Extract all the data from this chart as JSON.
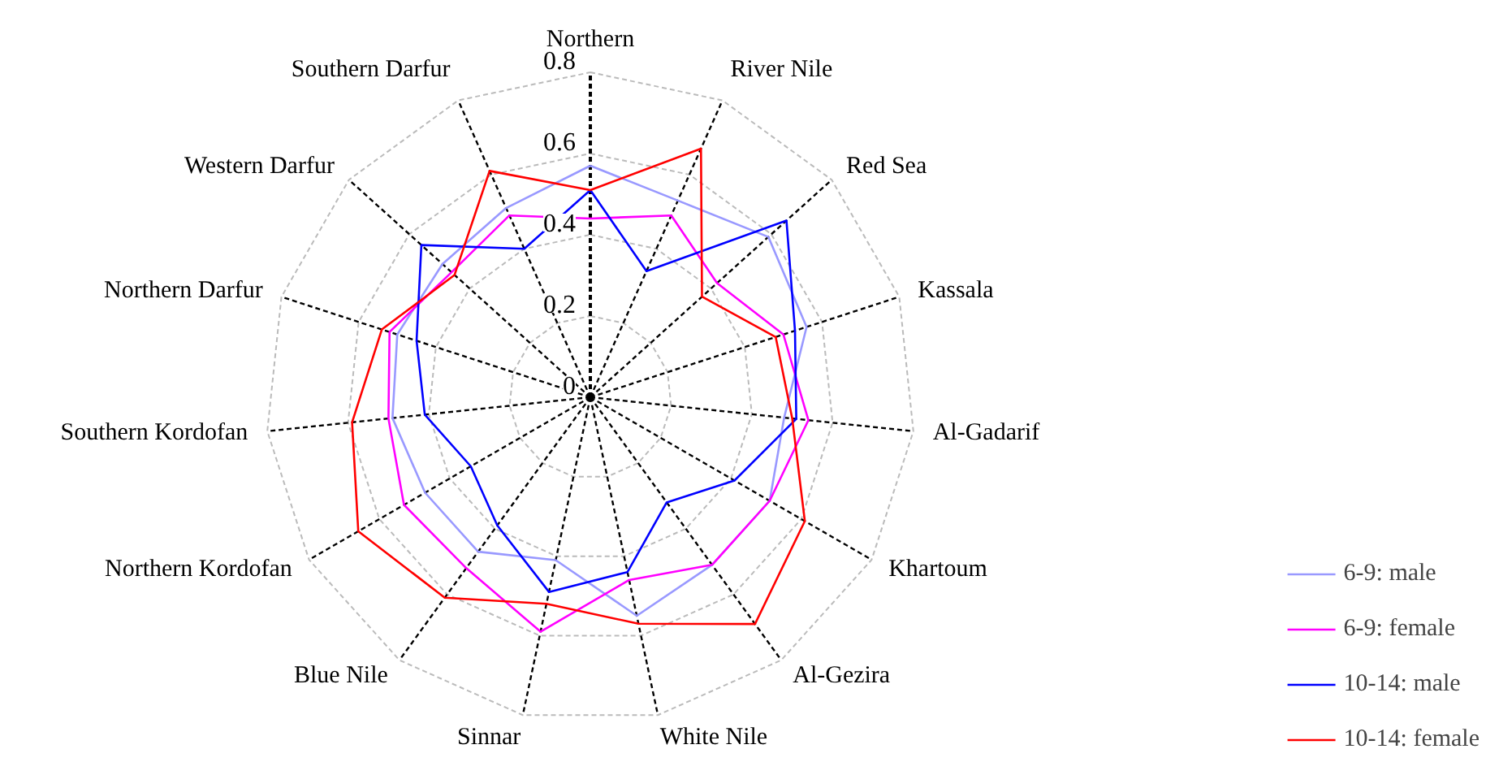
{
  "chart_data": {
    "type": "radar",
    "categories": [
      "Northern",
      "River Nile",
      "Red Sea",
      "Kassala",
      "Al-Gadarif",
      "Khartoum",
      "Al-Gezira",
      "White Nile",
      "Sinnar",
      "Blue Nile",
      "Northern Kordofan",
      "Southern Kordofan",
      "Northern Darfur",
      "Western Darfur",
      "Southern Darfur"
    ],
    "ylim": [
      0,
      0.8
    ],
    "yticks": [
      0,
      0.2,
      0.4,
      0.6,
      0.8
    ],
    "legend": "bottom right",
    "grid": true,
    "series": [
      {
        "name": "6-9: male",
        "color": "#9999ff",
        "values": [
          0.57,
          0.53,
          0.59,
          0.56,
          0.48,
          0.51,
          0.51,
          0.55,
          0.41,
          0.47,
          0.47,
          0.49,
          0.5,
          0.49,
          0.51
        ]
      },
      {
        "name": "6-9: female",
        "color": "#ff00ff",
        "values": [
          0.44,
          0.49,
          0.42,
          0.5,
          0.54,
          0.51,
          0.51,
          0.46,
          0.59,
          0.52,
          0.53,
          0.5,
          0.52,
          0.46,
          0.49
        ]
      },
      {
        "name": "10-14: male",
        "color": "#0000ff",
        "values": [
          0.51,
          0.34,
          0.65,
          0.53,
          0.51,
          0.41,
          0.32,
          0.44,
          0.49,
          0.39,
          0.34,
          0.41,
          0.45,
          0.56,
          0.4
        ]
      },
      {
        "name": "10-14: female",
        "color": "#ff0000",
        "values": [
          0.51,
          0.67,
          0.37,
          0.48,
          0.5,
          0.61,
          0.69,
          0.57,
          0.52,
          0.61,
          0.66,
          0.59,
          0.54,
          0.45,
          0.61
        ]
      }
    ]
  }
}
